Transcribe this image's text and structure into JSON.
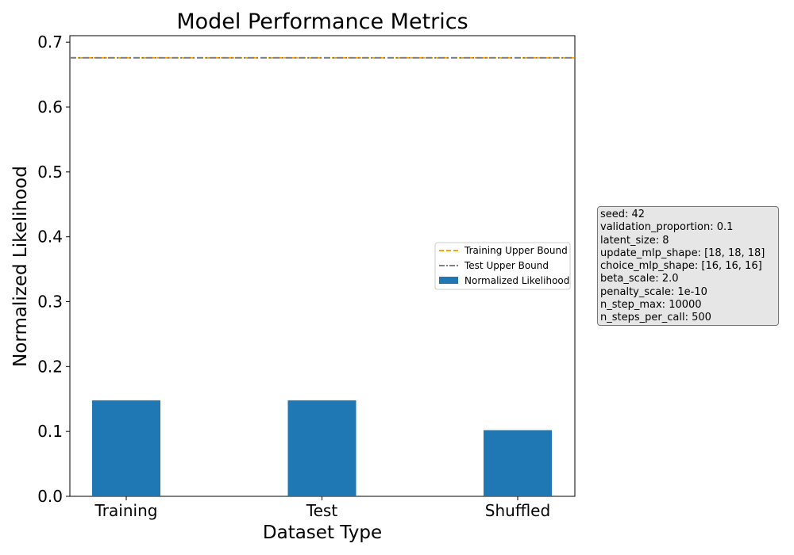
{
  "chart_data": {
    "type": "bar",
    "title": "Model Performance Metrics",
    "xlabel": "Dataset Type",
    "ylabel": "Normalized Likelihood",
    "categories": [
      "Training",
      "Test",
      "Shuffled"
    ],
    "series": [
      {
        "name": "Normalized Likelihood",
        "values": [
          0.148,
          0.148,
          0.102
        ],
        "color": "#1f77b4"
      }
    ],
    "reference_lines": [
      {
        "name": "Training Upper Bound",
        "value": 0.676,
        "color": "#ffa500",
        "style": "dashed"
      },
      {
        "name": "Test Upper Bound",
        "value": 0.676,
        "color": "#808080",
        "style": "dashdot"
      }
    ],
    "ylim": [
      0,
      0.71
    ],
    "yticks": [
      "0.0",
      "0.1",
      "0.2",
      "0.3",
      "0.4",
      "0.5",
      "0.6",
      "0.7"
    ],
    "grid": false,
    "legend_position": "center-right"
  },
  "info_box": {
    "lines": [
      "seed: 42",
      "validation_proportion: 0.1",
      "latent_size: 8",
      "update_mlp_shape: [18, 18, 18]",
      "choice_mlp_shape: [16, 16, 16]",
      "beta_scale: 2.0",
      "penalty_scale: 1e-10",
      "n_step_max: 10000",
      "n_steps_per_call: 500"
    ]
  }
}
